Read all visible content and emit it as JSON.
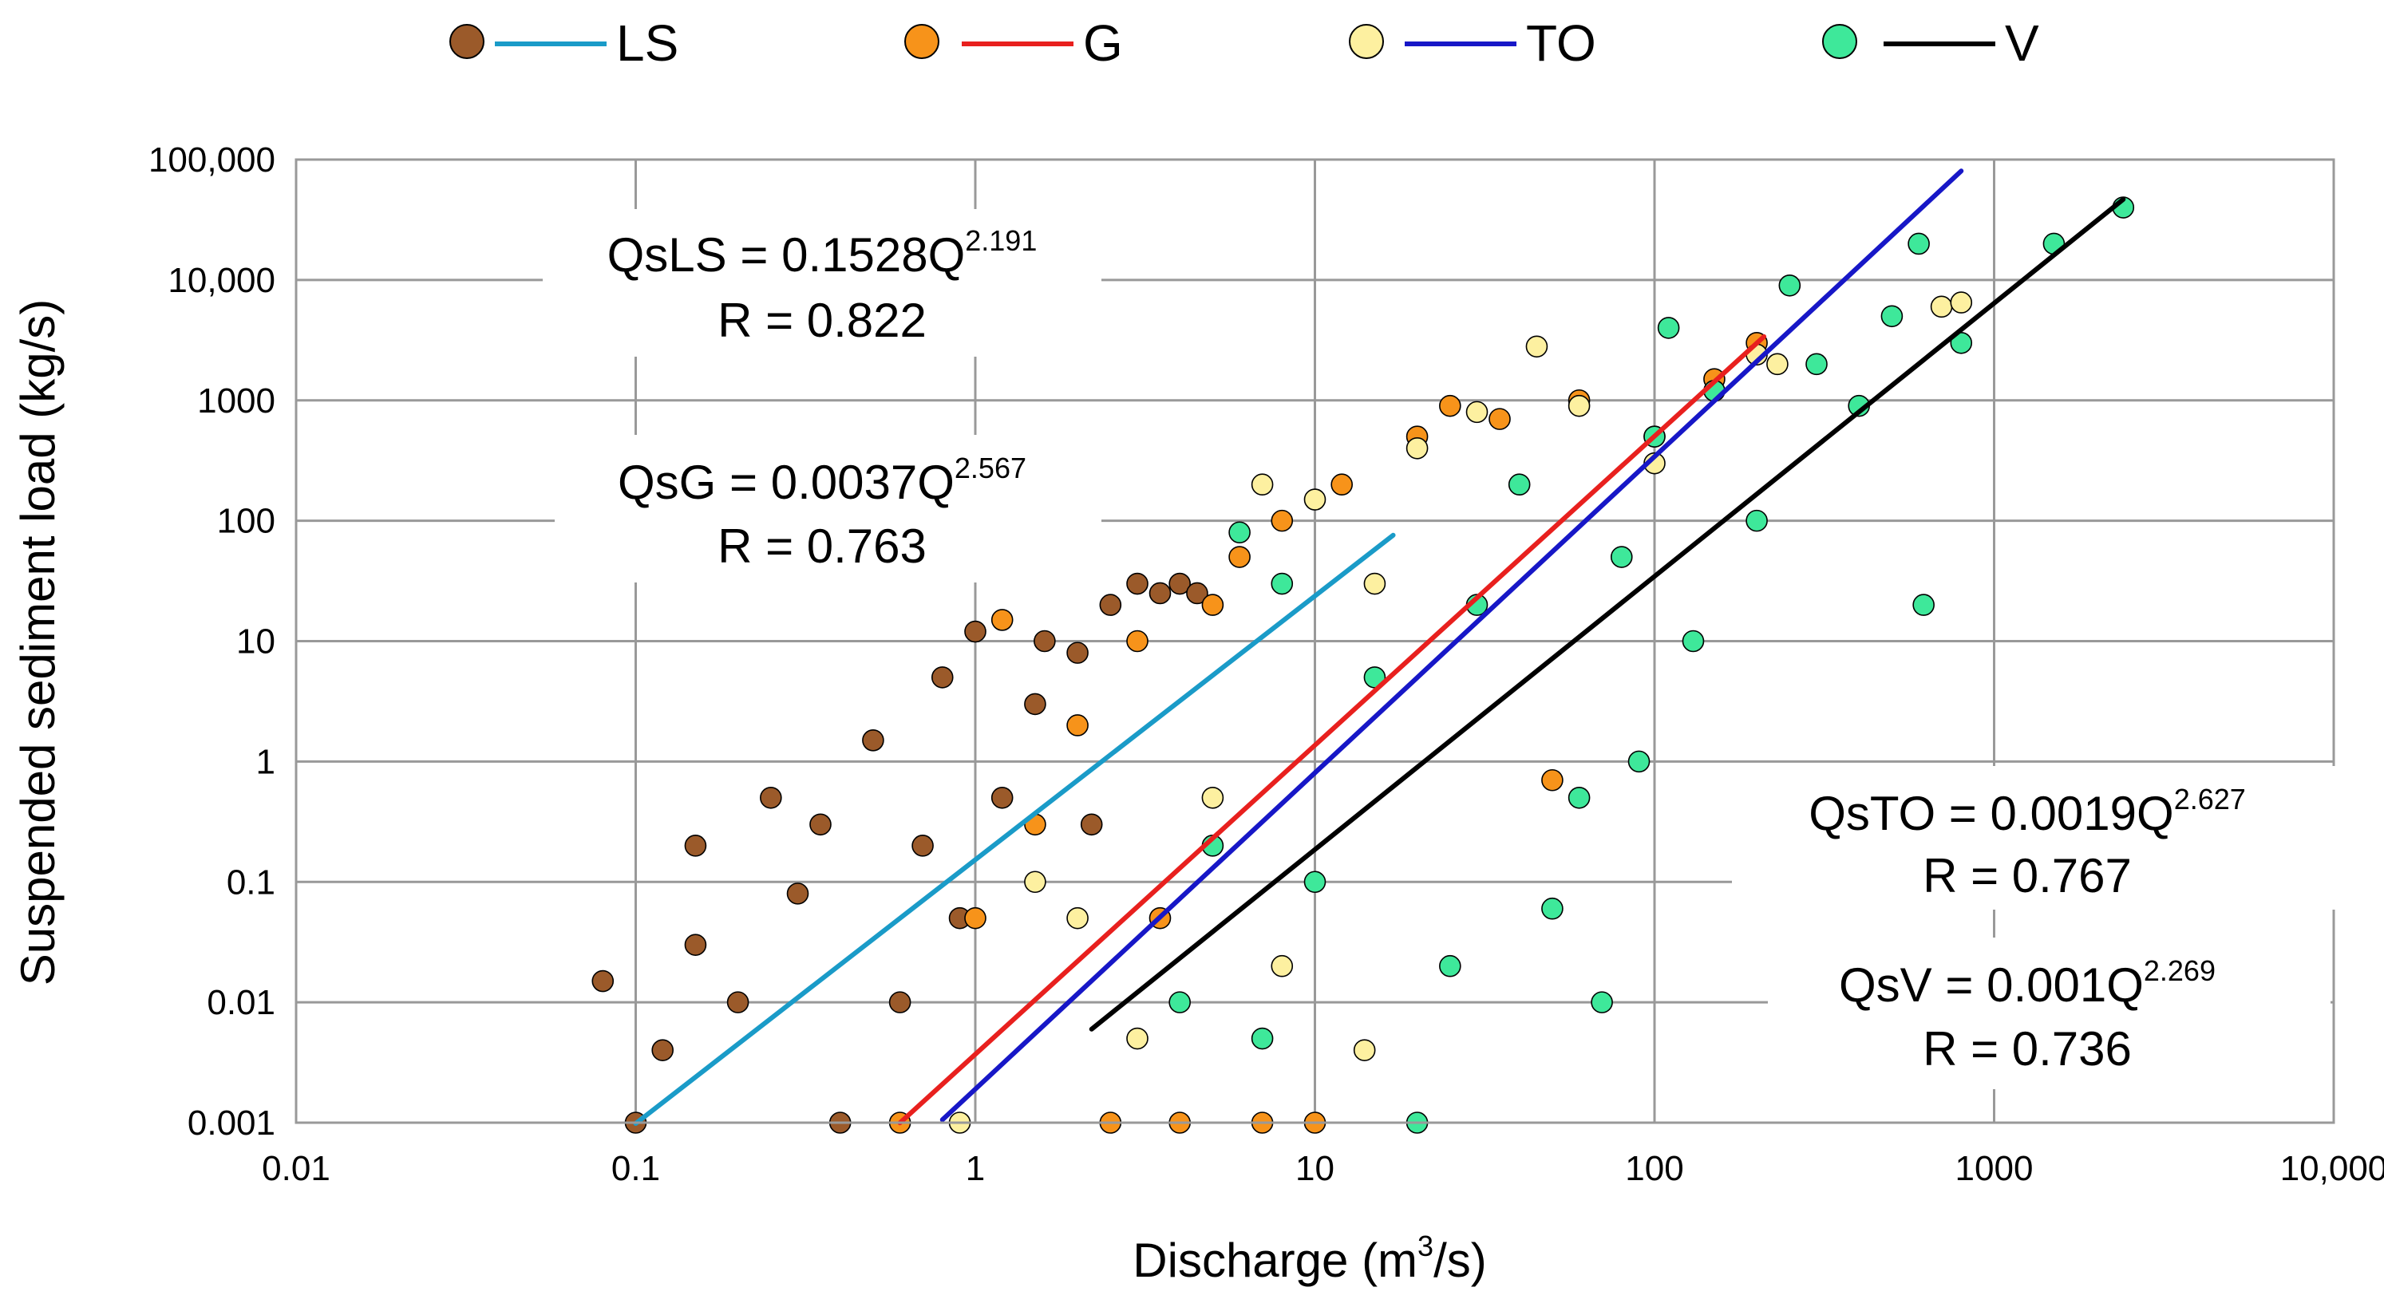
{
  "chart_data": {
    "type": "scatter",
    "scale": "log-log",
    "xlabel": "Discharge (m3/s)",
    "xlabel_parts": {
      "before": "Discharge (m",
      "sup": "3",
      "after": "/s)"
    },
    "ylabel": "Suspended sediment load (kg/s)",
    "xlim": [
      0.01,
      10000
    ],
    "ylim": [
      0.001,
      100000
    ],
    "x_ticks": [
      {
        "value": 0.01,
        "label": "0.01"
      },
      {
        "value": 0.1,
        "label": "0.1"
      },
      {
        "value": 1,
        "label": "1"
      },
      {
        "value": 10,
        "label": "10"
      },
      {
        "value": 100,
        "label": "100"
      },
      {
        "value": 1000,
        "label": "1000"
      },
      {
        "value": 10000,
        "label": "10,000"
      }
    ],
    "y_ticks": [
      {
        "value": 0.001,
        "label": "0.001"
      },
      {
        "value": 0.01,
        "label": "0.01"
      },
      {
        "value": 0.1,
        "label": "0.1"
      },
      {
        "value": 1,
        "label": "1"
      },
      {
        "value": 10,
        "label": "10"
      },
      {
        "value": 100,
        "label": "100"
      },
      {
        "value": 1000,
        "label": "1000"
      },
      {
        "value": 10000,
        "label": "10,000"
      },
      {
        "value": 100000,
        "label": "100,000"
      }
    ],
    "grid": true,
    "legend_position": "top",
    "series": [
      {
        "name": "LS",
        "marker_color": "#9b5a2a",
        "line_color": "#1a9bc8",
        "equation": {
          "lhs": "QsLS = 0.1528Q",
          "exponent": "2.191",
          "r": "R = 0.822"
        },
        "fit": {
          "a": 0.1528,
          "b": 2.191,
          "x_range": [
            0.1,
            17
          ]
        },
        "points": [
          [
            0.08,
            0.015
          ],
          [
            0.1,
            0.001
          ],
          [
            0.12,
            0.004
          ],
          [
            0.15,
            0.03
          ],
          [
            0.15,
            0.2
          ],
          [
            0.2,
            0.01
          ],
          [
            0.25,
            0.5
          ],
          [
            0.3,
            0.08
          ],
          [
            0.35,
            0.3
          ],
          [
            0.5,
            1.5
          ],
          [
            0.6,
            0.01
          ],
          [
            0.8,
            5
          ],
          [
            0.9,
            0.05
          ],
          [
            1.0,
            12
          ],
          [
            1.2,
            0.5
          ],
          [
            1.5,
            3
          ],
          [
            1.6,
            10
          ],
          [
            2.0,
            8
          ],
          [
            2.5,
            20
          ],
          [
            3.0,
            30
          ],
          [
            3.5,
            25
          ],
          [
            4.0,
            30
          ],
          [
            4.5,
            25
          ],
          [
            2.2,
            0.3
          ],
          [
            0.4,
            0.001
          ],
          [
            0.7,
            0.2
          ]
        ]
      },
      {
        "name": "G",
        "marker_color": "#f7931a",
        "line_color": "#e8201e",
        "equation": {
          "lhs": "QsG = 0.0037Q",
          "exponent": "2.567",
          "r": "R = 0.763"
        },
        "fit": {
          "a": 0.0037,
          "b": 2.567,
          "x_range": [
            0.6,
            210
          ]
        },
        "points": [
          [
            0.6,
            0.001
          ],
          [
            1.0,
            0.05
          ],
          [
            1.2,
            15
          ],
          [
            1.5,
            0.3
          ],
          [
            2.0,
            2
          ],
          [
            2.5,
            0.001
          ],
          [
            3.0,
            10
          ],
          [
            4.0,
            0.001
          ],
          [
            5.0,
            20
          ],
          [
            6.0,
            50
          ],
          [
            7.0,
            0.001
          ],
          [
            8.0,
            100
          ],
          [
            10.0,
            0.001
          ],
          [
            12.0,
            200
          ],
          [
            20.0,
            500
          ],
          [
            25.0,
            900
          ],
          [
            35.0,
            700
          ],
          [
            50.0,
            0.7
          ],
          [
            60.0,
            1000
          ],
          [
            100.0,
            500
          ],
          [
            150.0,
            1500
          ],
          [
            200.0,
            3000
          ],
          [
            3.5,
            0.05
          ]
        ]
      },
      {
        "name": "TO",
        "marker_color": "#fdf0a0",
        "line_color": "#1717c7",
        "equation": {
          "lhs": "QsTO = 0.0019Q",
          "exponent": "2.627",
          "r": "R = 0.767"
        },
        "fit": {
          "a": 0.0019,
          "b": 2.627,
          "x_range": [
            0.8,
            800
          ]
        },
        "points": [
          [
            0.9,
            0.001
          ],
          [
            1.5,
            0.1
          ],
          [
            2.0,
            0.05
          ],
          [
            3.0,
            0.005
          ],
          [
            5.0,
            0.5
          ],
          [
            7.0,
            200
          ],
          [
            10.0,
            150
          ],
          [
            14.0,
            0.004
          ],
          [
            20.0,
            400
          ],
          [
            30.0,
            800
          ],
          [
            45.0,
            2800
          ],
          [
            60.0,
            900
          ],
          [
            100.0,
            300
          ],
          [
            200.0,
            2400
          ],
          [
            230.0,
            2000
          ],
          [
            700.0,
            6000
          ],
          [
            800.0,
            6500
          ],
          [
            15.0,
            30
          ],
          [
            8.0,
            0.02
          ]
        ]
      },
      {
        "name": "V",
        "marker_color": "#3ee89a",
        "line_color": "#000000",
        "equation": {
          "lhs": "QsV = 0.001Q",
          "exponent": "2.269",
          "r": "R = 0.736"
        },
        "fit": {
          "a": 0.001,
          "b": 2.269,
          "x_range": [
            2.2,
            2400
          ]
        },
        "points": [
          [
            4.0,
            0.01
          ],
          [
            5.0,
            0.2
          ],
          [
            6.0,
            80
          ],
          [
            7.0,
            0.005
          ],
          [
            8.0,
            30
          ],
          [
            10.0,
            0.1
          ],
          [
            15.0,
            5
          ],
          [
            20.0,
            0.001
          ],
          [
            25.0,
            0.02
          ],
          [
            30.0,
            20
          ],
          [
            40.0,
            200
          ],
          [
            50.0,
            0.06
          ],
          [
            70.0,
            0.01
          ],
          [
            80.0,
            50
          ],
          [
            100.0,
            500
          ],
          [
            110.0,
            4000
          ],
          [
            130.0,
            10
          ],
          [
            150.0,
            1200
          ],
          [
            200.0,
            100
          ],
          [
            250.0,
            9000
          ],
          [
            300.0,
            2000
          ],
          [
            400.0,
            900
          ],
          [
            500.0,
            5000
          ],
          [
            600.0,
            20000
          ],
          [
            620.0,
            20
          ],
          [
            800.0,
            3000
          ],
          [
            1500.0,
            20000
          ],
          [
            2400.0,
            40000
          ],
          [
            60.0,
            0.5
          ],
          [
            90.0,
            1
          ]
        ]
      }
    ]
  }
}
